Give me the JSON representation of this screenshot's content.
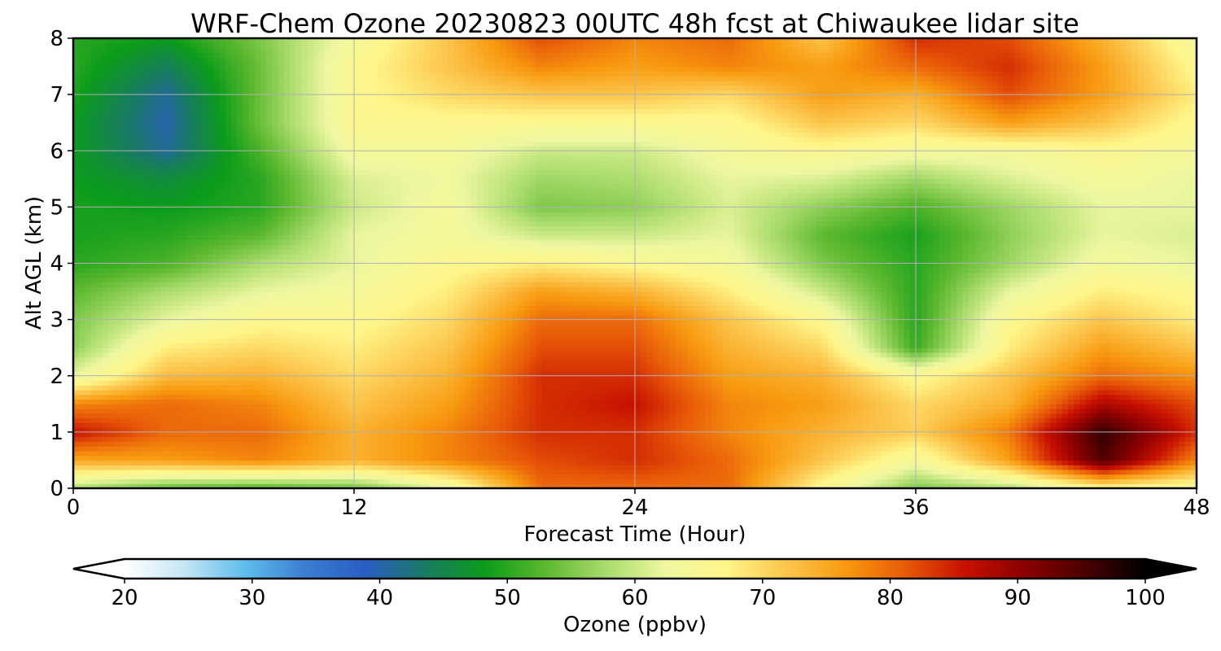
{
  "chart_data": {
    "type": "heatmap",
    "title": "WRF-Chem Ozone  20230823 00UTC 48h fcst at Chiwaukee lidar site",
    "xlabel": "Forecast Time (Hour)",
    "ylabel": "Alt AGL (km)",
    "xlim": [
      0,
      48
    ],
    "ylim": [
      0,
      8
    ],
    "x_ticks": [
      "0",
      "12",
      "24",
      "36",
      "48"
    ],
    "y_ticks": [
      "0",
      "1",
      "2",
      "3",
      "4",
      "5",
      "6",
      "7",
      "8"
    ],
    "grid": true,
    "x": [
      0,
      4,
      8,
      12,
      16,
      20,
      24,
      28,
      32,
      36,
      40,
      44,
      48
    ],
    "y": [
      0,
      0.5,
      1,
      1.5,
      2,
      2.5,
      3,
      3.5,
      4,
      4.5,
      5,
      5.5,
      6,
      6.5,
      7,
      7.5,
      8
    ],
    "z_units": "ppbv",
    "z": [
      [
        58,
        53,
        52,
        54,
        62,
        80,
        80,
        80,
        66,
        55,
        58,
        66,
        64
      ],
      [
        75,
        76,
        78,
        74,
        78,
        82,
        84,
        80,
        72,
        64,
        76,
        95,
        78
      ],
      [
        86,
        80,
        80,
        74,
        78,
        84,
        84,
        78,
        74,
        71,
        79,
        97,
        84
      ],
      [
        78,
        80,
        78,
        72,
        76,
        84,
        86,
        78,
        76,
        70,
        74,
        88,
        82
      ],
      [
        62,
        73,
        74,
        70,
        74,
        84,
        84,
        76,
        74,
        66,
        72,
        80,
        77
      ],
      [
        56,
        68,
        70,
        68,
        72,
        82,
        82,
        74,
        70,
        51,
        68,
        76,
        72
      ],
      [
        55,
        62,
        66,
        66,
        70,
        80,
        80,
        72,
        66,
        50,
        66,
        72,
        68
      ],
      [
        53,
        58,
        62,
        64,
        68,
        76,
        74,
        68,
        60,
        50,
        62,
        68,
        66
      ],
      [
        50,
        52,
        58,
        62,
        66,
        68,
        66,
        64,
        55,
        50,
        57,
        64,
        62
      ],
      [
        49,
        50,
        53,
        62,
        64,
        60,
        60,
        62,
        53,
        49,
        56,
        62,
        61
      ],
      [
        49,
        48,
        50,
        60,
        64,
        55,
        56,
        61,
        56,
        52,
        57,
        62,
        62
      ],
      [
        48,
        46,
        50,
        61,
        63,
        57,
        58,
        62,
        61,
        57,
        61,
        64,
        62
      ],
      [
        48,
        41,
        52,
        64,
        64,
        60,
        60,
        64,
        66,
        64,
        64,
        66,
        64
      ],
      [
        48,
        40,
        54,
        66,
        66,
        66,
        66,
        66,
        72,
        70,
        76,
        72,
        66
      ],
      [
        49,
        41,
        54,
        66,
        70,
        72,
        72,
        70,
        76,
        74,
        82,
        76,
        68
      ],
      [
        50,
        44,
        54,
        66,
        72,
        78,
        76,
        78,
        76,
        80,
        84,
        76,
        66
      ],
      [
        50,
        48,
        55,
        64,
        72,
        82,
        78,
        80,
        72,
        84,
        82,
        74,
        64
      ]
    ],
    "colorbar": {
      "label": "Ozone  (ppbv)",
      "min": 20,
      "max": 100,
      "ticks": [
        "20",
        "30",
        "40",
        "50",
        "60",
        "70",
        "80",
        "90",
        "100"
      ],
      "extend": "both",
      "colors": [
        "#ffffff",
        "#c4e6f5",
        "#5fbdeb",
        "#3a7ed0",
        "#2a5dc4",
        "#197a63",
        "#0b9c1a",
        "#5cb82e",
        "#a8db6c",
        "#eef7a0",
        "#fff68a",
        "#fcc74e",
        "#f89a10",
        "#e85a08",
        "#c71000",
        "#8a0000",
        "#4a0000",
        "#000000"
      ]
    }
  }
}
